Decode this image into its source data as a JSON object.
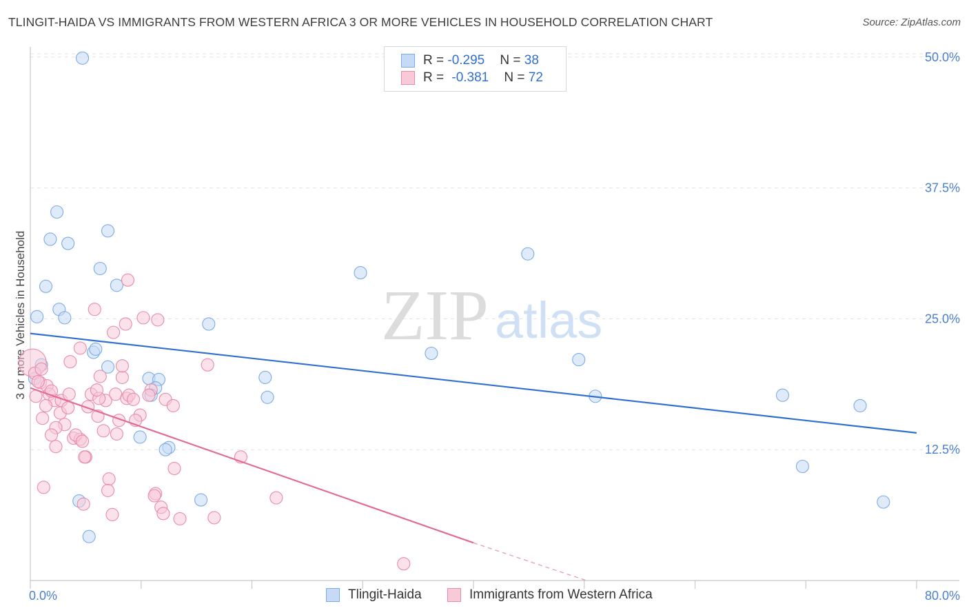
{
  "title": "TLINGIT-HAIDA VS IMMIGRANTS FROM WESTERN AFRICA 3 OR MORE VEHICLES IN HOUSEHOLD CORRELATION CHART",
  "source": "Source: ZipAtlas.com",
  "watermark": {
    "zip": "ZIP",
    "atlas": "atlas"
  },
  "legend": {
    "rows": [
      {
        "r_label": "R = ",
        "r_value": "-0.295",
        "n_label": "N = ",
        "n_value": "38"
      },
      {
        "r_label": "R = ",
        "r_value": "-0.381",
        "n_label": "N = ",
        "n_value": "72"
      }
    ]
  },
  "chart_data": {
    "type": "scatter",
    "title": "TLINGIT-HAIDA VS IMMIGRANTS FROM WESTERN AFRICA 3 OR MORE VEHICLES IN HOUSEHOLD CORRELATION CHART",
    "xlabel": "",
    "ylabel": "3 or more Vehicles in Household",
    "xlim": [
      0,
      80
    ],
    "ylim": [
      0,
      51.5
    ],
    "x_tick_labels": [
      "0.0%",
      "80.0%"
    ],
    "y_ticks": [
      12.5,
      25.0,
      37.5,
      50.0
    ],
    "y_tick_labels": [
      "12.5%",
      "25.0%",
      "37.5%",
      "50.0%"
    ],
    "grid": true,
    "legend_position": "top-center",
    "series": [
      {
        "name": "Tlingit-Haida",
        "color": "#7aaae8",
        "fill": "#c6daf5",
        "trend": {
          "x0": 0,
          "y0": 23.6,
          "x1": 80,
          "y1": 14.1
        },
        "points": [
          [
            4.7,
            49.9
          ],
          [
            2.4,
            35.2
          ],
          [
            1.8,
            32.6
          ],
          [
            3.4,
            32.2
          ],
          [
            7.0,
            33.4
          ],
          [
            6.3,
            29.8
          ],
          [
            7.8,
            28.2
          ],
          [
            1.4,
            28.1
          ],
          [
            2.6,
            25.9
          ],
          [
            0.6,
            25.2
          ],
          [
            3.1,
            25.1
          ],
          [
            16.1,
            24.5
          ],
          [
            5.7,
            21.8
          ],
          [
            1.0,
            20.6
          ],
          [
            7.0,
            20.4
          ],
          [
            10.7,
            19.3
          ],
          [
            11.6,
            19.2
          ],
          [
            11.3,
            18.4
          ],
          [
            10.9,
            17.7
          ],
          [
            9.9,
            13.7
          ],
          [
            12.5,
            12.7
          ],
          [
            12.2,
            12.5
          ],
          [
            4.4,
            7.6
          ],
          [
            15.4,
            7.7
          ],
          [
            5.3,
            4.2
          ],
          [
            21.2,
            19.4
          ],
          [
            21.4,
            17.5
          ],
          [
            29.8,
            29.4
          ],
          [
            36.2,
            21.7
          ],
          [
            44.9,
            31.2
          ],
          [
            49.5,
            21.1
          ],
          [
            51.0,
            17.6
          ],
          [
            67.9,
            17.7
          ],
          [
            69.7,
            10.9
          ],
          [
            74.9,
            16.7
          ],
          [
            77.0,
            7.5
          ],
          [
            0.4,
            19.3
          ],
          [
            5.9,
            22.1
          ]
        ]
      },
      {
        "name": "Immigrants from Western Africa",
        "color": "#e98aa8",
        "fill": "#f8c9d7",
        "trend": {
          "x0": 0,
          "y0": 18.4,
          "x1": 40,
          "y1": 3.6
        },
        "trend_dashed": {
          "x0": 40,
          "y0": 3.6,
          "x1": 50.2,
          "y1": 0
        },
        "points": [
          [
            0.2,
            20.8
          ],
          [
            0.4,
            19.8
          ],
          [
            0.9,
            18.9
          ],
          [
            0.5,
            17.6
          ],
          [
            1.5,
            18.6
          ],
          [
            1.7,
            17.8
          ],
          [
            2.2,
            17.2
          ],
          [
            1.4,
            16.7
          ],
          [
            2.8,
            17.2
          ],
          [
            3.5,
            17.8
          ],
          [
            2.7,
            16.0
          ],
          [
            3.1,
            14.9
          ],
          [
            2.3,
            14.6
          ],
          [
            1.9,
            13.9
          ],
          [
            1.1,
            15.5
          ],
          [
            3.9,
            13.6
          ],
          [
            4.5,
            13.5
          ],
          [
            4.1,
            13.9
          ],
          [
            4.7,
            13.3
          ],
          [
            3.6,
            20.9
          ],
          [
            4.5,
            22.2
          ],
          [
            5.8,
            25.9
          ],
          [
            6.3,
            19.5
          ],
          [
            5.5,
            17.8
          ],
          [
            6.8,
            17.2
          ],
          [
            6.2,
            17.4
          ],
          [
            6.0,
            18.2
          ],
          [
            5.2,
            16.6
          ],
          [
            6.1,
            15.7
          ],
          [
            6.6,
            14.3
          ],
          [
            7.8,
            14.0
          ],
          [
            8.0,
            15.3
          ],
          [
            7.7,
            17.8
          ],
          [
            8.7,
            17.4
          ],
          [
            8.9,
            17.7
          ],
          [
            9.3,
            17.3
          ],
          [
            8.3,
            19.4
          ],
          [
            8.3,
            20.5
          ],
          [
            7.5,
            23.7
          ],
          [
            8.6,
            24.5
          ],
          [
            8.8,
            28.7
          ],
          [
            10.2,
            25.1
          ],
          [
            11.5,
            24.9
          ],
          [
            9.9,
            15.8
          ],
          [
            9.5,
            15.3
          ],
          [
            10.9,
            18.2
          ],
          [
            12.2,
            17.3
          ],
          [
            12.9,
            16.7
          ],
          [
            10.7,
            17.7
          ],
          [
            16.0,
            20.6
          ],
          [
            11.3,
            8.3
          ],
          [
            11.2,
            8.1
          ],
          [
            11.8,
            7.0
          ],
          [
            12.0,
            6.4
          ],
          [
            13.0,
            10.7
          ],
          [
            13.5,
            5.9
          ],
          [
            16.6,
            6.0
          ],
          [
            19.0,
            11.8
          ],
          [
            22.2,
            7.9
          ],
          [
            5.0,
            11.8
          ],
          [
            4.9,
            11.8
          ],
          [
            4.8,
            7.3
          ],
          [
            7.1,
            9.7
          ],
          [
            7.0,
            8.6
          ],
          [
            7.4,
            6.3
          ],
          [
            1.2,
            8.9
          ],
          [
            33.7,
            1.6
          ],
          [
            1.9,
            18.1
          ],
          [
            0.7,
            19.0
          ],
          [
            3.4,
            16.5
          ],
          [
            2.3,
            12.8
          ],
          [
            1.0,
            20.2
          ]
        ]
      }
    ]
  }
}
